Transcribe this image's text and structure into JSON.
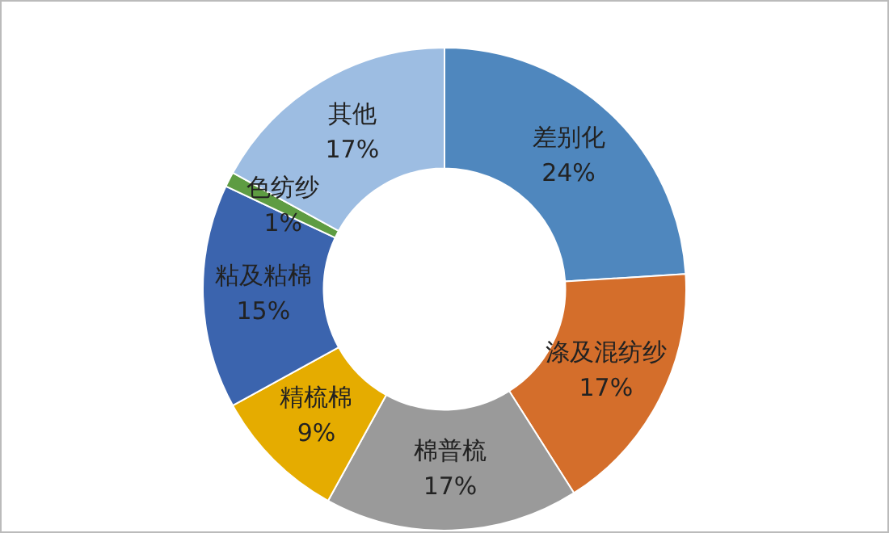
{
  "chart_data": {
    "type": "donut",
    "categories": [
      "差别化",
      "涤及混纺纱",
      "棉普梳",
      "精梳棉",
      "粘及粘棉",
      "色纺纱",
      "其他"
    ],
    "values": [
      24,
      17,
      17,
      9,
      15,
      1,
      17
    ],
    "value_labels": [
      "24%",
      "17%",
      "17%",
      "9%",
      "15%",
      "1%",
      "17%"
    ],
    "colors": [
      "#4f87be",
      "#d46e2b",
      "#9a9a9a",
      "#e5ac00",
      "#3b64ae",
      "#5e9c42",
      "#9dbde2"
    ],
    "legend": false
  }
}
